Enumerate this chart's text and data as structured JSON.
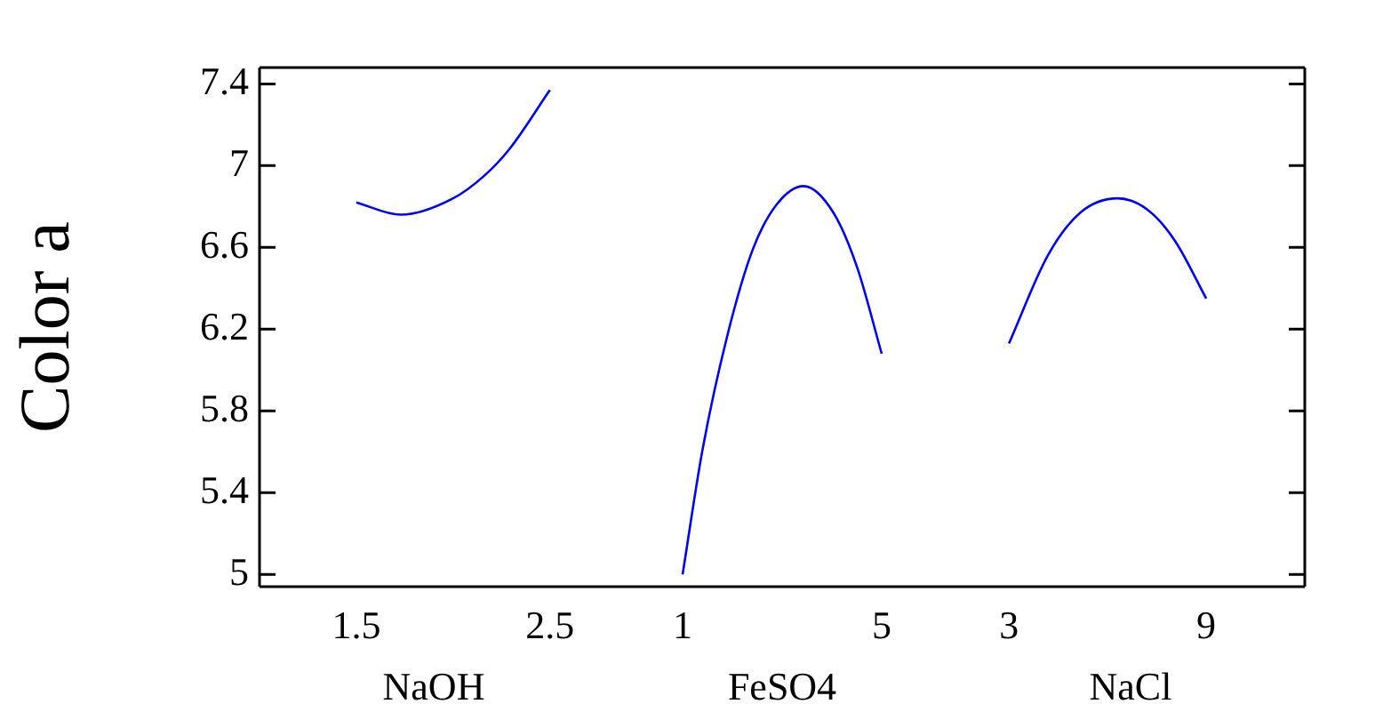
{
  "chart_data": [
    {
      "type": "line",
      "ylabel": "Color a",
      "xlabel": "NaOH",
      "x": [
        1.5,
        1.73,
        2.0,
        2.16,
        2.29,
        2.5
      ],
      "values": [
        6.82,
        6.76,
        6.84,
        6.95,
        7.08,
        7.37
      ],
      "color": "#0000ff",
      "marker": "none",
      "xlim": [
        1,
        2.8
      ],
      "xticks": [
        1.5,
        2.5
      ],
      "ylim": [
        4.94,
        7.48
      ],
      "yticks": [
        5,
        5.4,
        5.8,
        6.2,
        6.6,
        7,
        7.4
      ],
      "grid": false
    },
    {
      "type": "line",
      "xlabel": "FeSO4",
      "x": [
        1,
        1.4,
        1.9,
        2.41,
        2.89,
        3.43,
        4.03,
        4.51,
        5
      ],
      "values": [
        5.0,
        5.61,
        6.17,
        6.59,
        6.81,
        6.9,
        6.77,
        6.5,
        6.08
      ],
      "color": "#0000ff",
      "marker": "none",
      "xlim": [
        -0.5,
        6.5
      ],
      "xticks": [
        1,
        5
      ],
      "ylim": [
        4.94,
        7.48
      ],
      "yticks": [
        5,
        5.4,
        5.8,
        6.2,
        6.6,
        7,
        7.4
      ],
      "tick_labels": "x",
      "grid": false
    },
    {
      "type": "line",
      "xlabel": "NaCl",
      "x": [
        3,
        4.18,
        5.17,
        6.31,
        7.25,
        8.06,
        9
      ],
      "values": [
        6.13,
        6.56,
        6.77,
        6.84,
        6.78,
        6.63,
        6.35
      ],
      "color": "#0000ff",
      "marker": "none",
      "xlim": [
        1.4,
        12
      ],
      "xticks": [
        3,
        9
      ],
      "ylim": [
        4.94,
        7.48
      ],
      "yticks": [
        5,
        5.4,
        5.8,
        6.2,
        6.6,
        7,
        7.4
      ],
      "tick_labels": "x",
      "grid": false
    }
  ]
}
